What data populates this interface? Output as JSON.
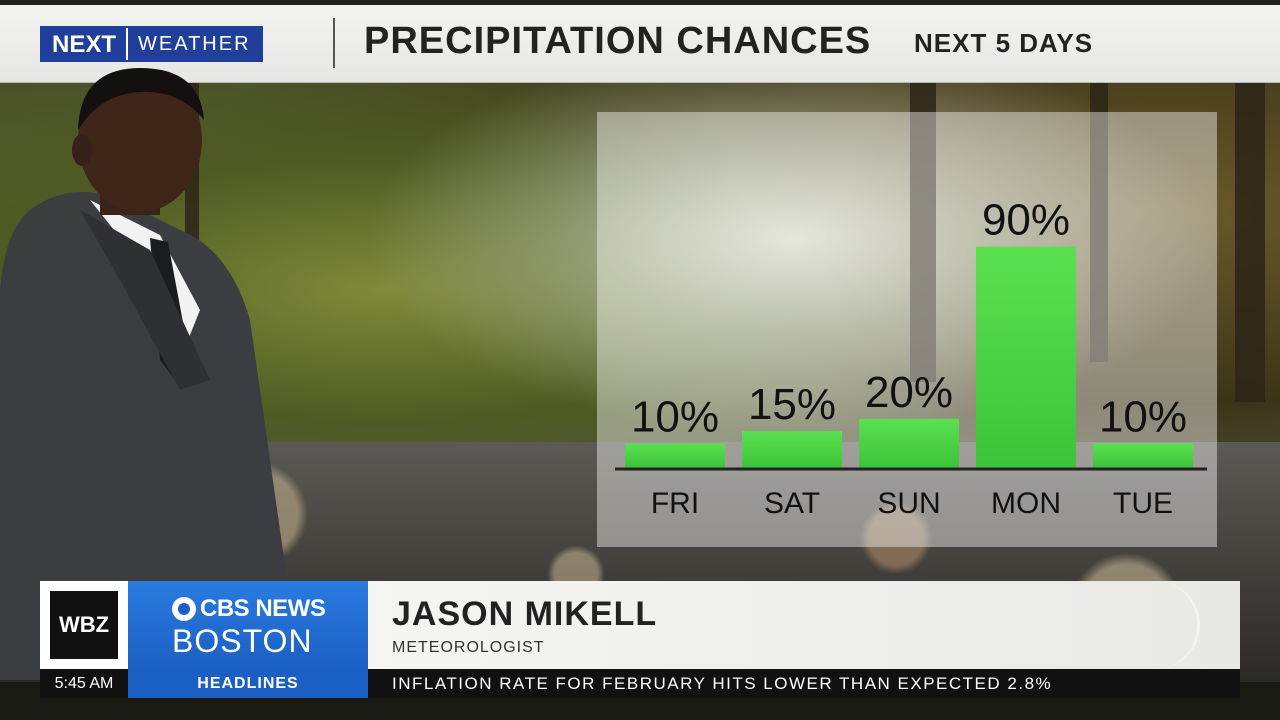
{
  "header": {
    "logo_next": "NEXT",
    "logo_weather": "WEATHER",
    "title": "PRECIPITATION CHANCES",
    "subtitle": "NEXT 5 DAYS"
  },
  "chart_data": {
    "type": "bar",
    "categories": [
      "FRI",
      "SAT",
      "SUN",
      "MON",
      "TUE"
    ],
    "values": [
      10,
      15,
      20,
      90,
      10
    ],
    "value_labels": [
      "10%",
      "15%",
      "20%",
      "90%",
      "10%"
    ],
    "ylim": [
      0,
      100
    ],
    "colors": {
      "bar": "#3cc43a",
      "bar_top": "#5be04f",
      "baseline": "#222222"
    }
  },
  "lower_third": {
    "station": "WBZ",
    "brand_news": "CBS NEWS",
    "brand_city": "BOSTON",
    "name": "JASON MIKELL",
    "role": "METEOROLOGIST"
  },
  "ticker": {
    "time": "5:45 AM",
    "tag": "HEADLINES",
    "headline": "INFLATION RATE FOR FEBRUARY HITS LOWER THAN EXPECTED 2.8%"
  },
  "colors": {
    "brand_blue": "#1f3f9a",
    "cbs_blue": "#1c5fc4"
  }
}
